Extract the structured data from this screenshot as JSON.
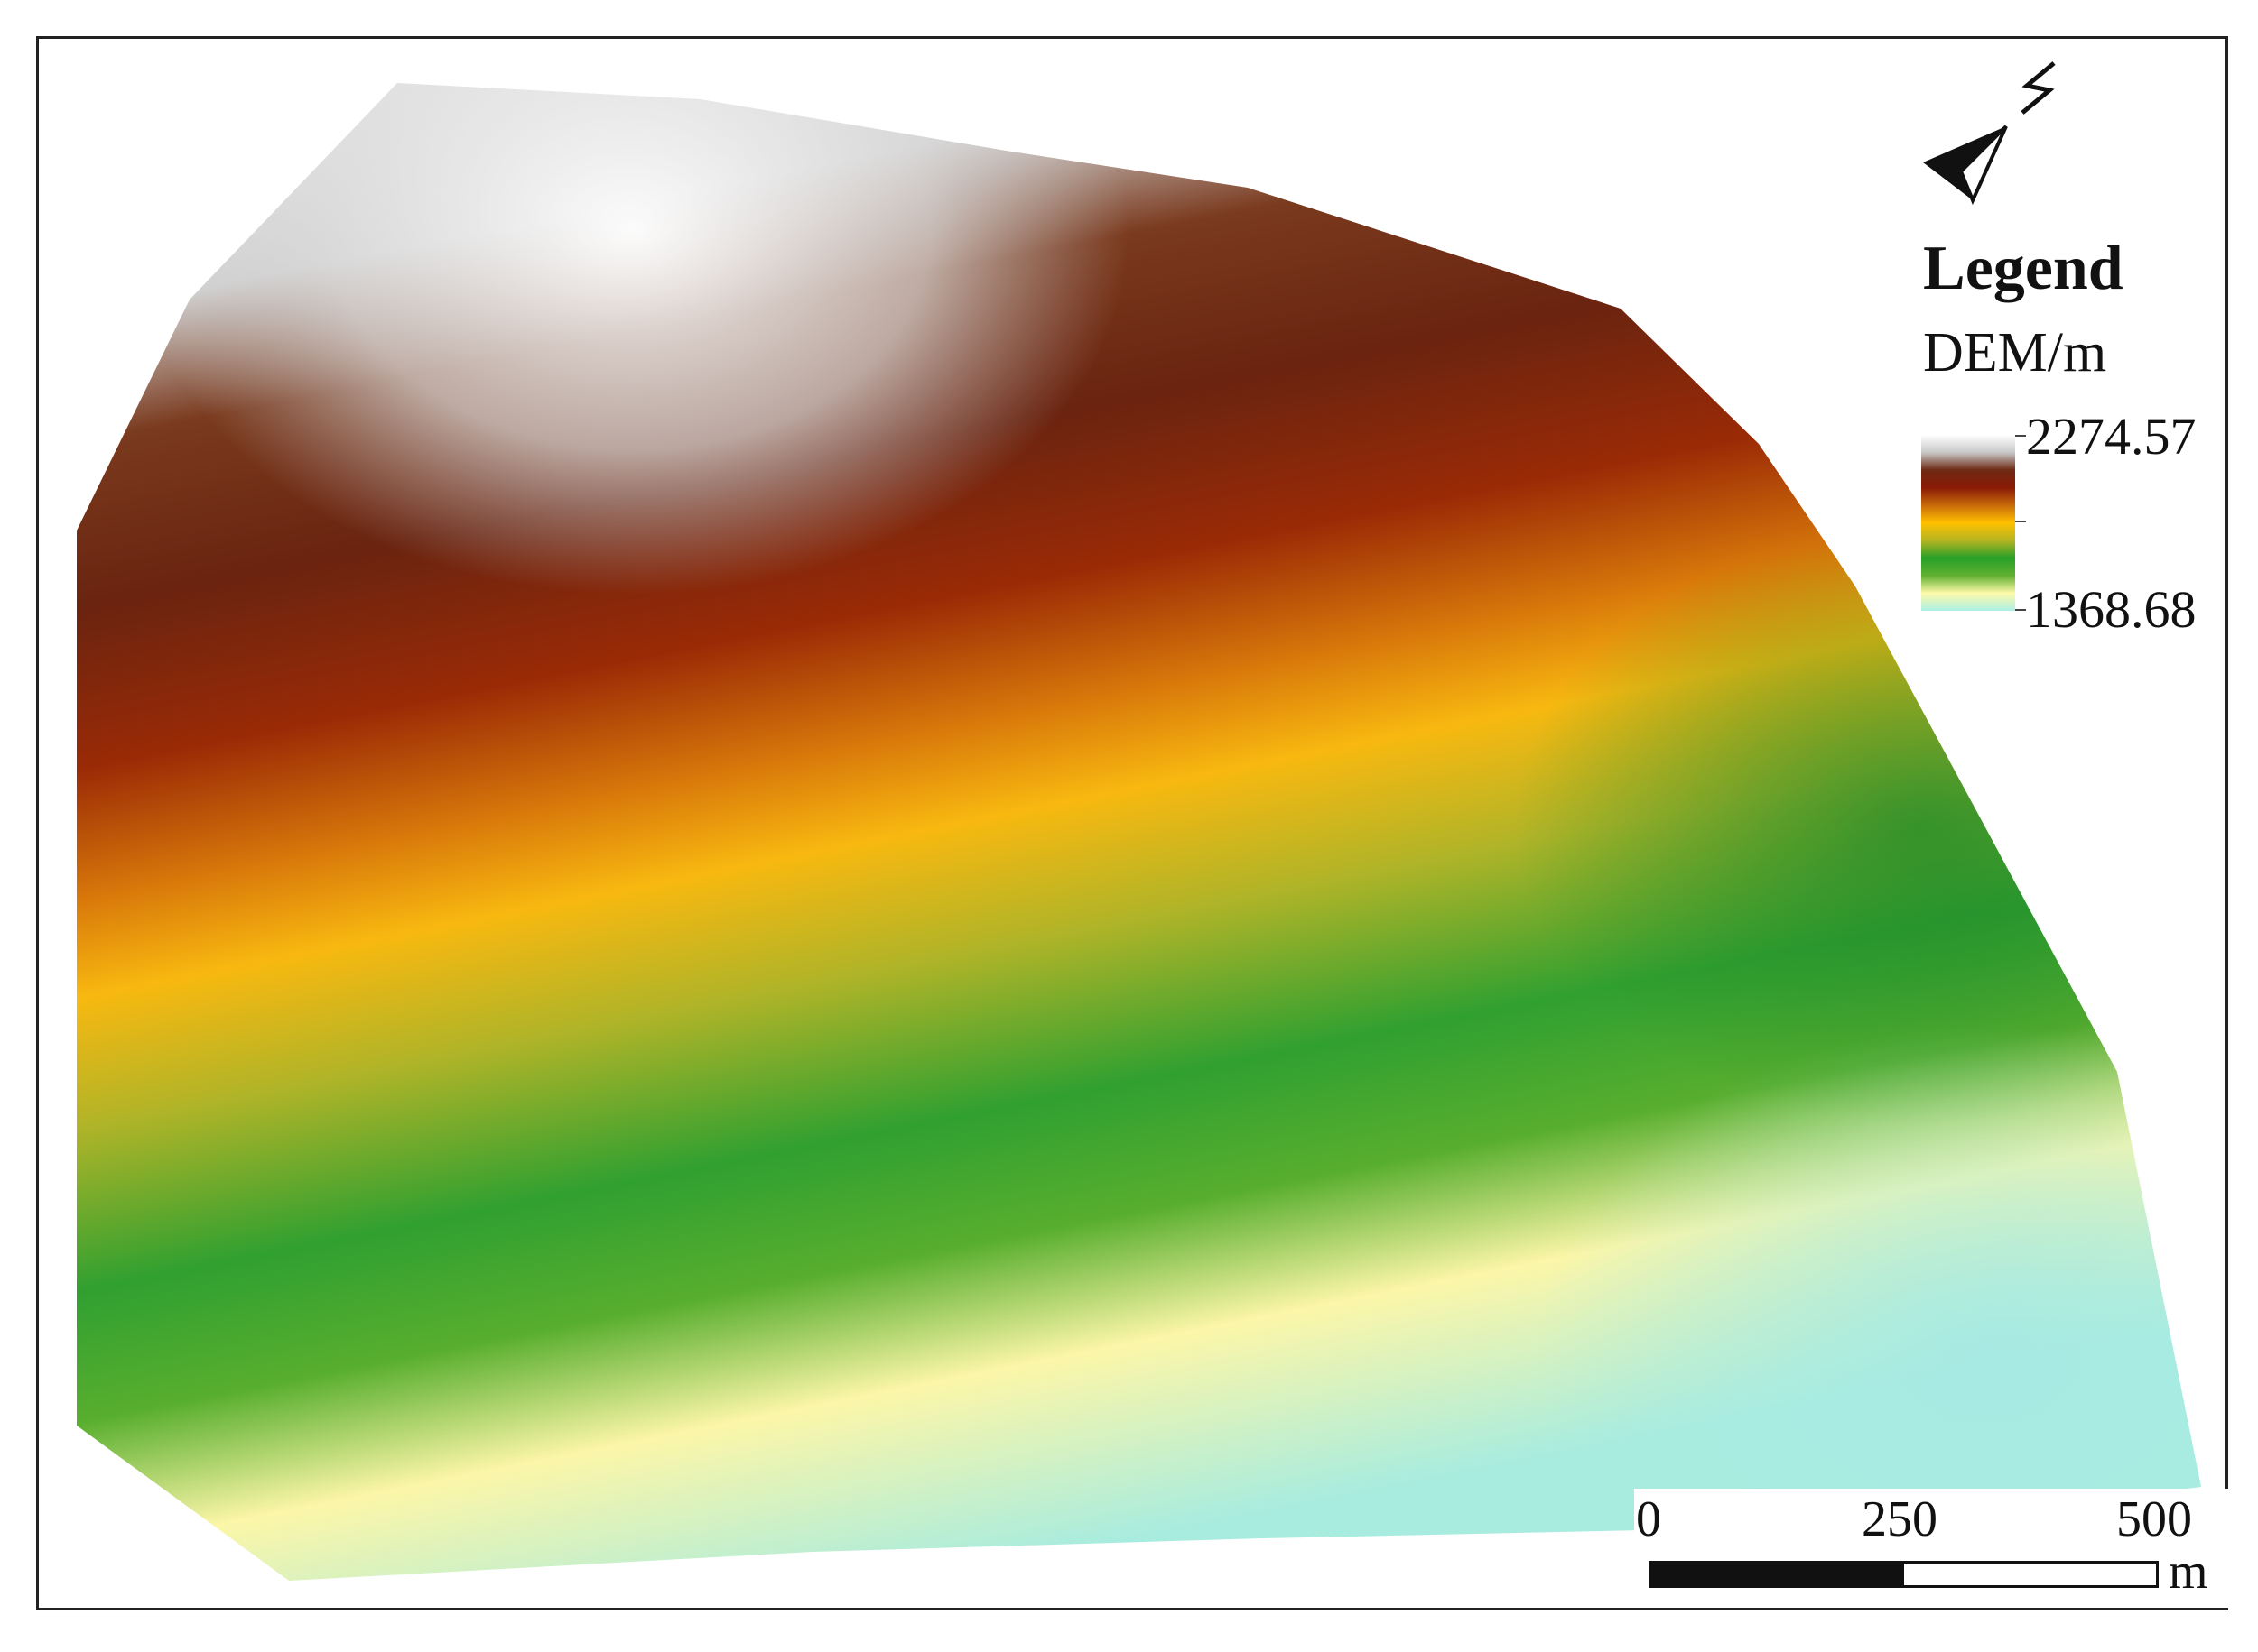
{
  "legend": {
    "title": "Legend",
    "subtitle": "DEM/m",
    "max_value": "2274.57",
    "min_value": "1368.68",
    "color_ramp": [
      "#ffffff",
      "#c8c8c8",
      "#6e2a14",
      "#8a1a06",
      "#c86a0a",
      "#ffc000",
      "#b4b420",
      "#28a028",
      "#60b030",
      "#fffaaa",
      "#aaf0e6"
    ]
  },
  "north_arrow": {
    "label": "N",
    "icon": "north-arrow-icon"
  },
  "scale_bar": {
    "labels": [
      "0",
      "250",
      "500"
    ],
    "unit": "m"
  },
  "colors": {
    "frame": "#222222",
    "background": "#ffffff"
  }
}
